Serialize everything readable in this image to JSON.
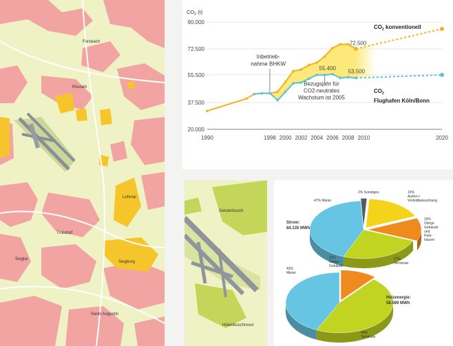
{
  "map_large": {
    "places": [
      "Forsbach",
      "Rösrath",
      "Lohmar",
      "Troisdorf",
      "Sieglar",
      "Siegburg",
      "Sankt Augustin"
    ]
  },
  "map_small": {
    "places": [
      "Geisterbusch",
      "Hütenbuschmoor"
    ]
  },
  "chart_data": [
    {
      "type": "line",
      "title": "",
      "ylabel": "CO2 (t)",
      "xlabel": "",
      "ylim": [
        20000,
        90000
      ],
      "xlim": [
        1990,
        2020
      ],
      "y_ticks": [
        "90.000",
        "72.500",
        "55.500",
        "37.500",
        "20.000"
      ],
      "x_ticks": [
        "1990",
        "1998",
        "2000",
        "2002",
        "2004",
        "2006",
        "2008",
        "2010",
        "2020"
      ],
      "x_tick_values": [
        1990,
        1998,
        2000,
        2002,
        2004,
        2006,
        2008,
        2010,
        2020
      ],
      "y_tick_values": [
        90000,
        72500,
        55500,
        37500,
        20000
      ],
      "series": [
        {
          "name": "CO2 konventionell",
          "color": "#f5b21e",
          "x": [
            1990,
            1995,
            1996,
            1997,
            1998,
            1999,
            2000,
            2001,
            2002,
            2003,
            2004,
            2005,
            2006,
            2007,
            2008,
            2009
          ],
          "values": [
            32000,
            40000,
            43000,
            43500,
            43500,
            44500,
            51000,
            58000,
            59000,
            62000,
            63500,
            67500,
            73000,
            75500,
            75500,
            72500
          ],
          "projection_x": [
            2009,
            2020
          ],
          "projection_values": [
            72500,
            85500
          ]
        },
        {
          "name": "CO2 Flughafen Köln/Bonn",
          "color": "#5bc1d8",
          "x": [
            1996,
            1997,
            1998,
            1999,
            2000,
            2001,
            2002,
            2003,
            2004,
            2005,
            2006,
            2007,
            2008,
            2009
          ],
          "values": [
            43000,
            43500,
            43500,
            39000,
            44500,
            50000,
            50500,
            53000,
            55500,
            55400,
            56000,
            53500,
            54000,
            53500
          ],
          "projection_x": [
            2009,
            2020
          ],
          "projection_values": [
            53500,
            55500
          ]
        }
      ],
      "annotations": [
        {
          "text": "Inbetrieb-",
          "x": 1997.8,
          "y": 66300
        },
        {
          "text": "nahme BHKW",
          "x": 1997.8,
          "y": 61500
        },
        {
          "text": "Bezugsjahr für",
          "x": 2004.6,
          "y": 48600
        },
        {
          "text": "CO2-neutrales",
          "x": 2004.6,
          "y": 44100
        },
        {
          "text": "Wachstum ist 2005",
          "x": 2004.6,
          "y": 39600
        }
      ],
      "value_labels": [
        "55.400",
        "72.500",
        "53.500"
      ],
      "legend": {
        "conv_main": "CO",
        "conv_sub": "2",
        "conv_rest": " konventionell",
        "airport_main": "CO",
        "airport_sub": "2",
        "airport_rest": "Flughafen Köln/Bonn"
      }
    },
    {
      "type": "pie",
      "title": "Strom:",
      "subtitle": "84.135 MWh",
      "slices": [
        {
          "label": "Sonstiges",
          "value": 2,
          "color": "#555a5e"
        },
        {
          "label": "Außen-/ Vorfeldbeleuchtung",
          "value": 19,
          "color": "#f5d31a"
        },
        {
          "label": "Übrige Gebäude und Park-häuser",
          "value": 14,
          "color": "#ee8a1e"
        },
        {
          "label": "Terminals",
          "value": 27,
          "color": "#c2d422"
        },
        {
          "label": "Mieter",
          "value": 47,
          "color": "#66c5e3"
        }
      ],
      "label_texts": [
        "2% Sonstiges",
        "19%",
        "Außen-/",
        "Vorfeldbeleuchtung",
        "14%",
        "Übrige",
        "Gebäude",
        "und",
        "Park-",
        "häuser",
        "27%",
        "Terminals",
        "47% Mieter"
      ]
    },
    {
      "type": "pie",
      "title": "Heizenergie:",
      "subtitle": "58.599 MWh",
      "slices": [
        {
          "label": "Übrige Gebäude",
          "value": 11,
          "color": "#ee8a1e"
        },
        {
          "label": "Terminals",
          "value": 46,
          "color": "#c2d422"
        },
        {
          "label": "Mieter",
          "value": 43,
          "color": "#66c5e3"
        }
      ],
      "label_texts": [
        "11%",
        "Übrige",
        "Gebäude",
        "43%",
        "Mieter",
        "46%",
        "Terminals"
      ]
    }
  ]
}
